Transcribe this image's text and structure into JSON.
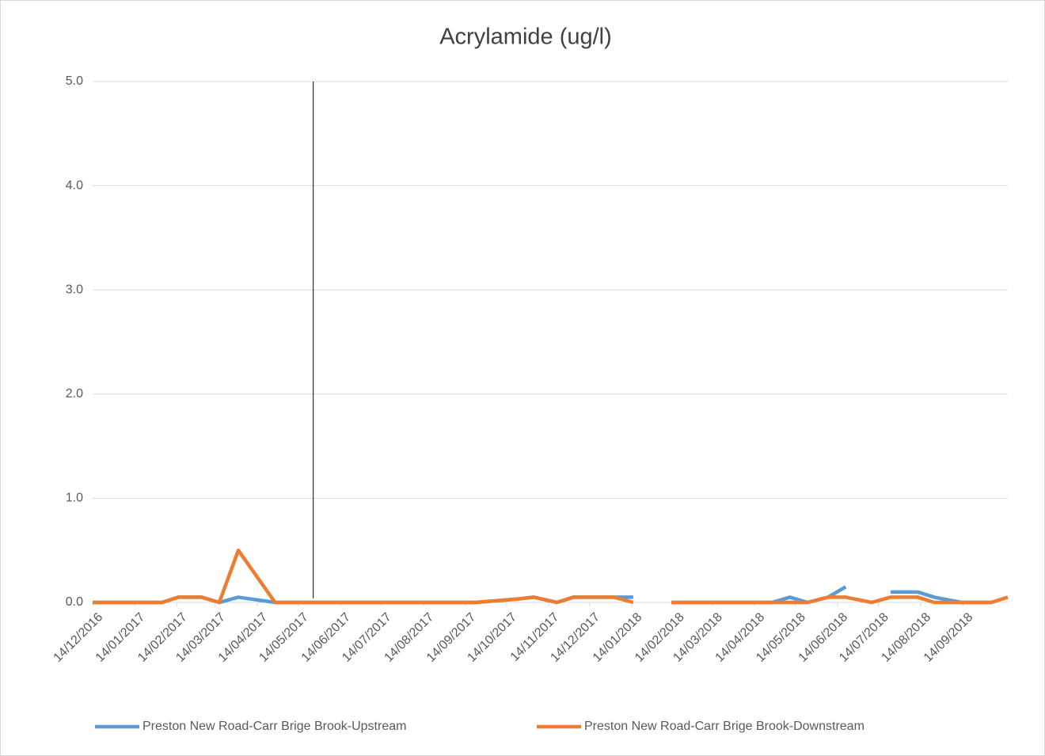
{
  "chart_data": {
    "type": "line",
    "title": "Acrylamide (ug/l)",
    "x": [
      "2016-12-14",
      "2017-01-02",
      "2017-02-03",
      "2017-02-15",
      "2017-03-04",
      "2017-03-17",
      "2017-03-31",
      "2017-04-27",
      "2017-05-28",
      "2017-06-26",
      "2017-07-25",
      "2017-08-23",
      "2017-09-21",
      "2017-10-20",
      "2017-11-03",
      "2017-11-20",
      "2017-12-02",
      "2017-12-17",
      "2018-01-01",
      "2018-01-15",
      "2018-01-29",
      "2018-02-12",
      "2018-03-14",
      "2018-04-12",
      "2018-04-27",
      "2018-05-10",
      "2018-05-23",
      "2018-06-07",
      "2018-06-20",
      "2018-07-09",
      "2018-07-23",
      "2018-08-12",
      "2018-08-24",
      "2018-09-13",
      "2018-10-05",
      "2018-10-17"
    ],
    "series": [
      {
        "name": "Preston New Road-Carr Brige Brook-Upstream",
        "color": "#5b9bd5",
        "values": [
          0,
          0,
          0,
          0.05,
          0.05,
          0,
          0.05,
          0,
          0,
          0,
          0,
          0,
          0,
          0.03,
          0.05,
          0,
          0.05,
          0.05,
          0.05,
          0.05,
          null,
          0,
          0,
          0,
          0,
          0.05,
          0,
          0.05,
          0.15,
          null,
          0.1,
          0.1,
          0.05,
          0,
          0,
          null
        ]
      },
      {
        "name": "Preston New Road-Carr Brige Brook-Downstream",
        "color": "#ed7d31",
        "values": [
          0,
          0,
          0,
          0.05,
          0.05,
          0,
          0.5,
          0,
          0,
          0,
          0,
          0,
          0,
          0.03,
          0.05,
          0,
          0.05,
          0.05,
          0.05,
          0,
          null,
          0,
          0,
          0,
          0,
          0,
          0,
          0.05,
          0.05,
          0,
          0.05,
          0.05,
          0,
          0,
          0,
          0.05
        ]
      }
    ],
    "reference_line": {
      "x": "2017-05-25",
      "y": [
        0.04,
        5.0
      ],
      "color": "#000000"
    },
    "xlim": [
      "2016-12-14",
      "2018-10-17"
    ],
    "xticks": [
      {
        "value": "2016-12-14",
        "label": "14/12/2016"
      },
      {
        "value": "2017-01-14",
        "label": "14/01/2017"
      },
      {
        "value": "2017-02-14",
        "label": "14/02/2017"
      },
      {
        "value": "2017-03-14",
        "label": "14/03/2017"
      },
      {
        "value": "2017-04-14",
        "label": "14/04/2017"
      },
      {
        "value": "2017-05-14",
        "label": "14/05/2017"
      },
      {
        "value": "2017-06-14",
        "label": "14/06/2017"
      },
      {
        "value": "2017-07-14",
        "label": "14/07/2017"
      },
      {
        "value": "2017-08-14",
        "label": "14/08/2017"
      },
      {
        "value": "2017-09-14",
        "label": "14/09/2017"
      },
      {
        "value": "2017-10-14",
        "label": "14/10/2017"
      },
      {
        "value": "2017-11-14",
        "label": "14/11/2017"
      },
      {
        "value": "2017-12-14",
        "label": "14/12/2017"
      },
      {
        "value": "2018-01-14",
        "label": "14/01/2018"
      },
      {
        "value": "2018-02-14",
        "label": "14/02/2018"
      },
      {
        "value": "2018-03-14",
        "label": "14/03/2018"
      },
      {
        "value": "2018-04-14",
        "label": "14/04/2018"
      },
      {
        "value": "2018-05-14",
        "label": "14/05/2018"
      },
      {
        "value": "2018-06-14",
        "label": "14/06/2018"
      },
      {
        "value": "2018-07-14",
        "label": "14/07/2018"
      },
      {
        "value": "2018-08-14",
        "label": "14/08/2018"
      },
      {
        "value": "2018-09-14",
        "label": "14/09/2018"
      }
    ],
    "ylim": [
      0,
      5
    ],
    "yticks": [
      {
        "value": 0,
        "label": "0.0"
      },
      {
        "value": 1,
        "label": "1.0"
      },
      {
        "value": 2,
        "label": "2.0"
      },
      {
        "value": 3,
        "label": "3.0"
      },
      {
        "value": 4,
        "label": "4.0"
      },
      {
        "value": 5,
        "label": "5.0"
      }
    ],
    "grid": true,
    "legend": "bottom"
  }
}
